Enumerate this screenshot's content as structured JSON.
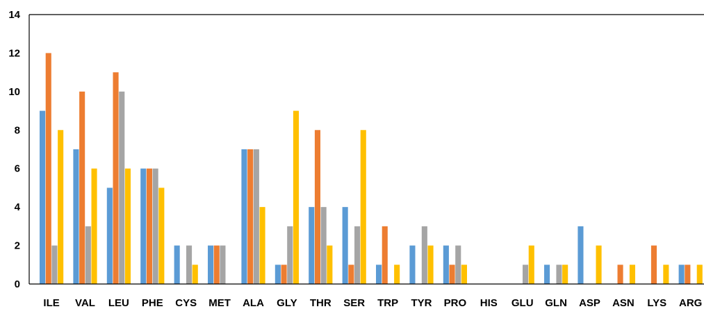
{
  "chart_data": {
    "type": "bar",
    "title": "",
    "xlabel": "",
    "ylabel": "",
    "ylim": [
      0,
      14
    ],
    "yticks": [
      0,
      2,
      4,
      6,
      8,
      10,
      12,
      14
    ],
    "grid": false,
    "legend": "none",
    "categories": [
      "ILE",
      "VAL",
      "LEU",
      "PHE",
      "CYS",
      "MET",
      "ALA",
      "GLY",
      "THR",
      "SER",
      "TRP",
      "TYR",
      "PRO",
      "HIS",
      "GLU",
      "GLN",
      "ASP",
      "ASN",
      "LYS",
      "ARG"
    ],
    "series": [
      {
        "color": "#5B9BD5",
        "values": [
          9,
          7,
          5,
          6,
          2,
          2,
          7,
          1,
          4,
          4,
          1,
          2,
          2,
          0,
          0,
          1,
          3,
          0,
          0,
          1
        ]
      },
      {
        "color": "#ED7D31",
        "values": [
          12,
          10,
          11,
          6,
          0,
          2,
          7,
          1,
          8,
          1,
          3,
          0,
          1,
          0,
          0,
          0,
          0,
          1,
          2,
          1
        ]
      },
      {
        "color": "#A5A5A5",
        "values": [
          2,
          3,
          10,
          6,
          2,
          2,
          7,
          3,
          4,
          3,
          0,
          3,
          2,
          0,
          1,
          1,
          0,
          0,
          0,
          0
        ]
      },
      {
        "color": "#FFC000",
        "values": [
          8,
          6,
          6,
          5,
          1,
          0,
          4,
          9,
          2,
          8,
          1,
          2,
          1,
          0,
          2,
          1,
          2,
          1,
          1,
          1
        ]
      }
    ]
  }
}
